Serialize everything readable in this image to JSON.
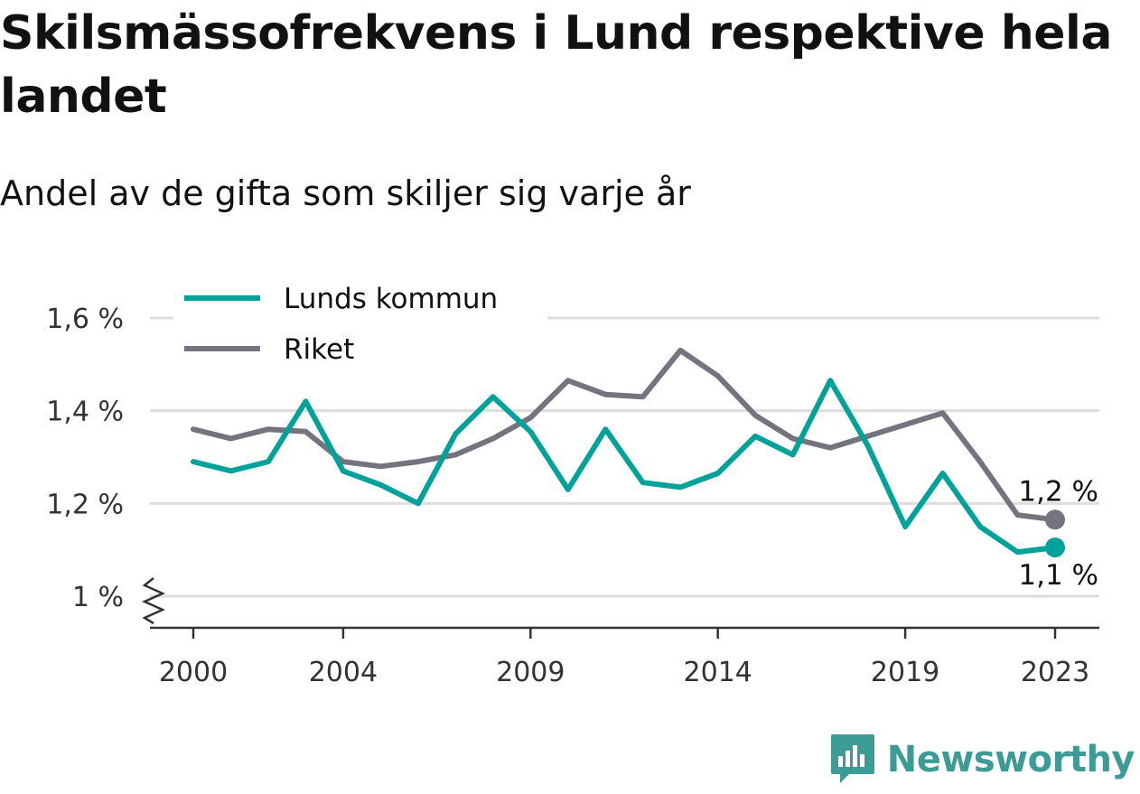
{
  "title": "Skilsmässofrekvens i Lund respektive hela landet",
  "subtitle": "Andel av de gifta som skiljer sig varje år",
  "brand": {
    "name": "Newsworthy",
    "icon": "newsworthy-logo-icon",
    "color": "#3d9b96"
  },
  "chart_data": {
    "type": "line",
    "x": [
      2000,
      2001,
      2002,
      2003,
      2004,
      2005,
      2006,
      2007,
      2008,
      2009,
      2010,
      2011,
      2012,
      2013,
      2014,
      2015,
      2016,
      2017,
      2018,
      2019,
      2020,
      2021,
      2022,
      2023
    ],
    "x_ticks": [
      2000,
      2004,
      2009,
      2014,
      2019,
      2023
    ],
    "x_tick_labels": [
      "2000",
      "2004",
      "2009",
      "2014",
      "2019",
      "2023"
    ],
    "y_ticks": [
      1.0,
      1.2,
      1.4,
      1.6
    ],
    "y_tick_labels": [
      "1 %",
      "1,2 %",
      "1,4 %",
      "1,6 %"
    ],
    "ylim": [
      0.93,
      1.6
    ],
    "axis_break": true,
    "grid": true,
    "legend_position": "top-left",
    "series": [
      {
        "name": "Lunds kommun",
        "color": "#00a299",
        "values": [
          1.29,
          1.27,
          1.29,
          1.42,
          1.27,
          1.24,
          1.2,
          1.35,
          1.43,
          1.355,
          1.23,
          1.36,
          1.245,
          1.235,
          1.265,
          1.345,
          1.305,
          1.465,
          1.325,
          1.15,
          1.265,
          1.15,
          1.095,
          1.105
        ],
        "end_label": "1,1 %"
      },
      {
        "name": "Riket",
        "color": "#75737d",
        "values": [
          1.36,
          1.34,
          1.36,
          1.355,
          1.29,
          1.28,
          1.29,
          1.305,
          1.34,
          1.385,
          1.465,
          1.435,
          1.43,
          1.53,
          1.475,
          1.39,
          1.34,
          1.32,
          1.345,
          1.37,
          1.395,
          1.29,
          1.175,
          1.165
        ],
        "end_label": "1,2 %"
      }
    ]
  }
}
